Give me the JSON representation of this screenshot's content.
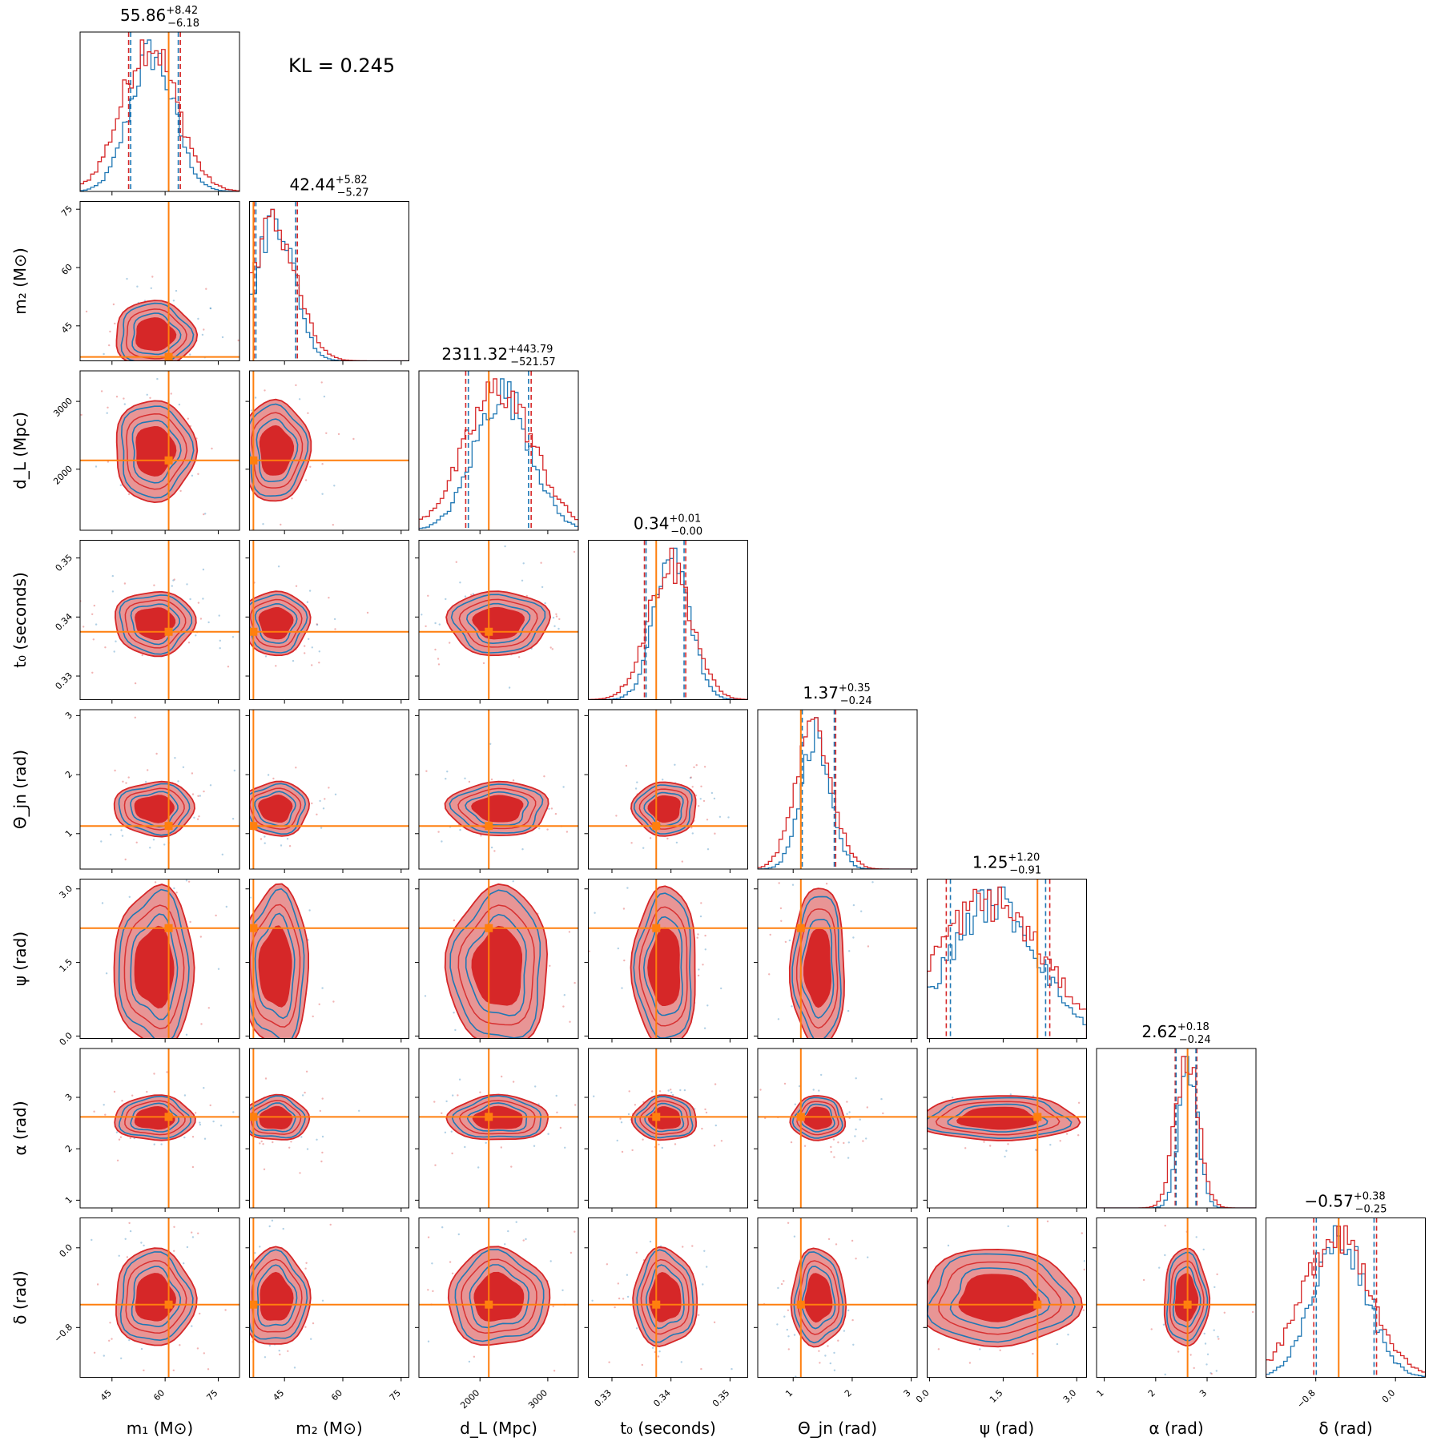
{
  "chart_data": {
    "type": "corner",
    "kl_label": "KL = 0.245",
    "colors": {
      "series_a": "#d62728",
      "series_b": "#1f77b4",
      "truth": "#ff7f0e",
      "fill_inner": "#d62728",
      "fill_outer": "#e89595"
    },
    "params": [
      {
        "key": "m1",
        "label": "m₁ (M⊙)",
        "range": [
          36,
          81
        ],
        "ticks": [
          45,
          60,
          75
        ],
        "tick_labels": [
          "45",
          "60",
          "75"
        ],
        "truth": 61,
        "median": 55.86,
        "q_lo": 49.7,
        "q_hi": 64.3,
        "title_val": "55.86",
        "title_plus": "+8.42",
        "title_minus": "−6.18"
      },
      {
        "key": "m2",
        "label": "m₂ (M⊙)",
        "range": [
          36,
          77
        ],
        "ticks": [
          45,
          60,
          75
        ],
        "tick_labels": [
          "45",
          "60",
          "75"
        ],
        "truth": 37,
        "median": 42.44,
        "q_lo": 37.2,
        "q_hi": 48.3,
        "title_val": "42.44",
        "title_plus": "+5.82",
        "title_minus": "−5.27"
      },
      {
        "key": "dL",
        "label": "d_L (Mpc)",
        "range": [
          1100,
          3450
        ],
        "ticks": [
          2000,
          3000
        ],
        "tick_labels": [
          "2000",
          "3000"
        ],
        "truth": 2130,
        "median": 2311.32,
        "q_lo": 1790,
        "q_hi": 2755,
        "title_val": "2311.32",
        "title_plus": "+443.79",
        "title_minus": "−521.57"
      },
      {
        "key": "t0",
        "label": "t₀ (seconds)",
        "range": [
          0.326,
          0.353
        ],
        "ticks": [
          0.33,
          0.34,
          0.35
        ],
        "tick_labels": [
          "0.33",
          "0.34",
          "0.35"
        ],
        "truth": 0.3375,
        "median": 0.34,
        "q_lo": 0.3355,
        "q_hi": 0.3425,
        "title_val": "0.34",
        "title_plus": "+0.01",
        "title_minus": "−0.00"
      },
      {
        "key": "theta",
        "label": "Θ_jn (rad)",
        "range": [
          0.4,
          3.1
        ],
        "ticks": [
          1,
          2,
          3
        ],
        "tick_labels": [
          "1",
          "2",
          "3"
        ],
        "truth": 1.13,
        "median": 1.37,
        "q_lo": 1.13,
        "q_hi": 1.72,
        "title_val": "1.37",
        "title_plus": "+0.35",
        "title_minus": "−0.24"
      },
      {
        "key": "psi",
        "label": "ψ (rad)",
        "range": [
          -0.05,
          3.2
        ],
        "ticks": [
          0.0,
          1.5,
          3.0
        ],
        "tick_labels": [
          "0.0",
          "1.5",
          "3.0"
        ],
        "truth": 2.2,
        "median": 1.25,
        "q_lo": 0.34,
        "q_hi": 2.45,
        "title_val": "1.25",
        "title_plus": "+1.20",
        "title_minus": "−0.91"
      },
      {
        "key": "alpha",
        "label": "α (rad)",
        "range": [
          0.85,
          3.95
        ],
        "ticks": [
          1,
          2,
          3
        ],
        "tick_labels": [
          "1",
          "2",
          "3"
        ],
        "truth": 2.62,
        "median": 2.62,
        "q_lo": 2.38,
        "q_hi": 2.8,
        "title_val": "2.62",
        "title_plus": "+0.18",
        "title_minus": "−0.24"
      },
      {
        "key": "delta",
        "label": "δ (rad)",
        "range": [
          -1.3,
          0.3
        ],
        "ticks": [
          -0.8,
          0.0
        ],
        "tick_labels": [
          "−0.8",
          "0.0"
        ],
        "truth": -0.57,
        "median": -0.57,
        "q_lo": -0.82,
        "q_hi": -0.19,
        "title_val": "−0.57",
        "title_plus": "+0.38",
        "title_minus": "−0.25"
      }
    ]
  }
}
